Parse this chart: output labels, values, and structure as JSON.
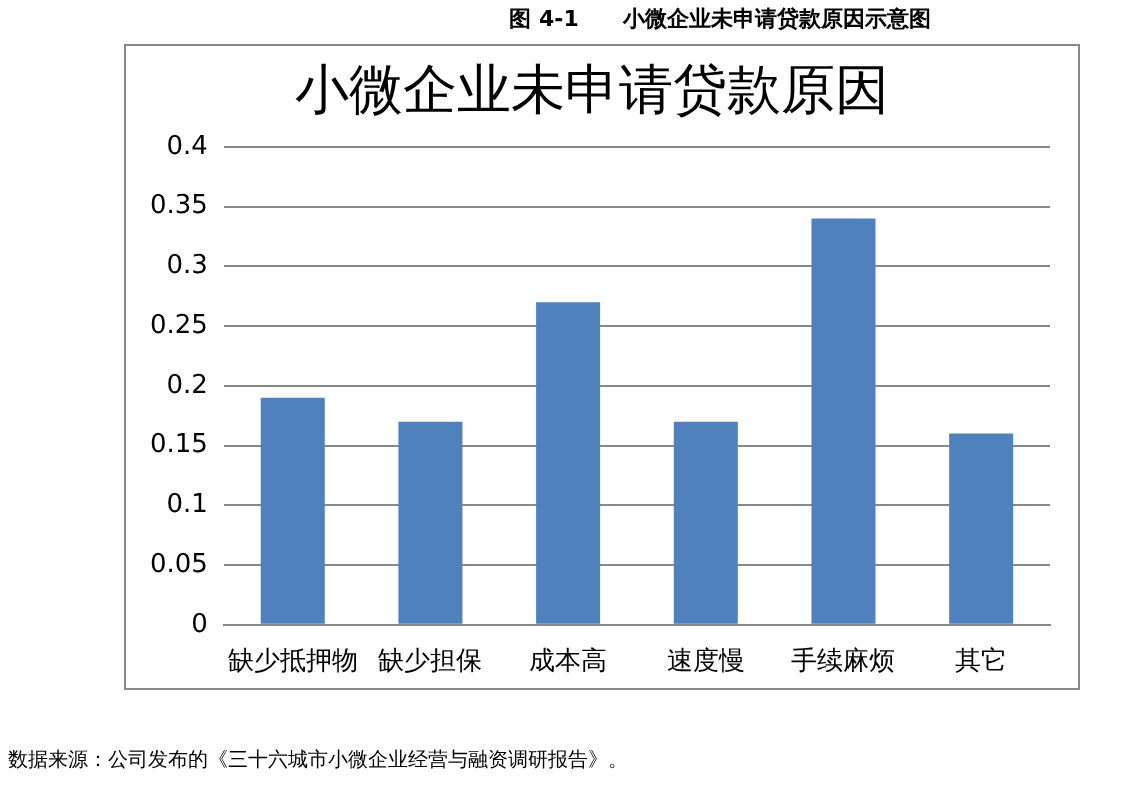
{
  "chart_data": {
    "type": "bar",
    "title": "小微企业未申请贷款原因",
    "categories": [
      "缺少抵押物",
      "缺少担保",
      "成本高",
      "速度慢",
      "手续麻烦",
      "其它"
    ],
    "values": [
      0.19,
      0.17,
      0.27,
      0.17,
      0.34,
      0.16
    ],
    "color": "#4f81bd",
    "ylim": [
      0,
      0.4
    ],
    "yticks": [
      0,
      0.05,
      0.1,
      0.15,
      0.2,
      0.25,
      0.3,
      0.35,
      0.4
    ],
    "grid": "y",
    "legend": false,
    "annotations": [
      "图 4-1　　小微企业未申请贷款原因示意图",
      "数据来源：公司发布的《三十六城市小微企业经营与融资调研报告》。"
    ]
  }
}
